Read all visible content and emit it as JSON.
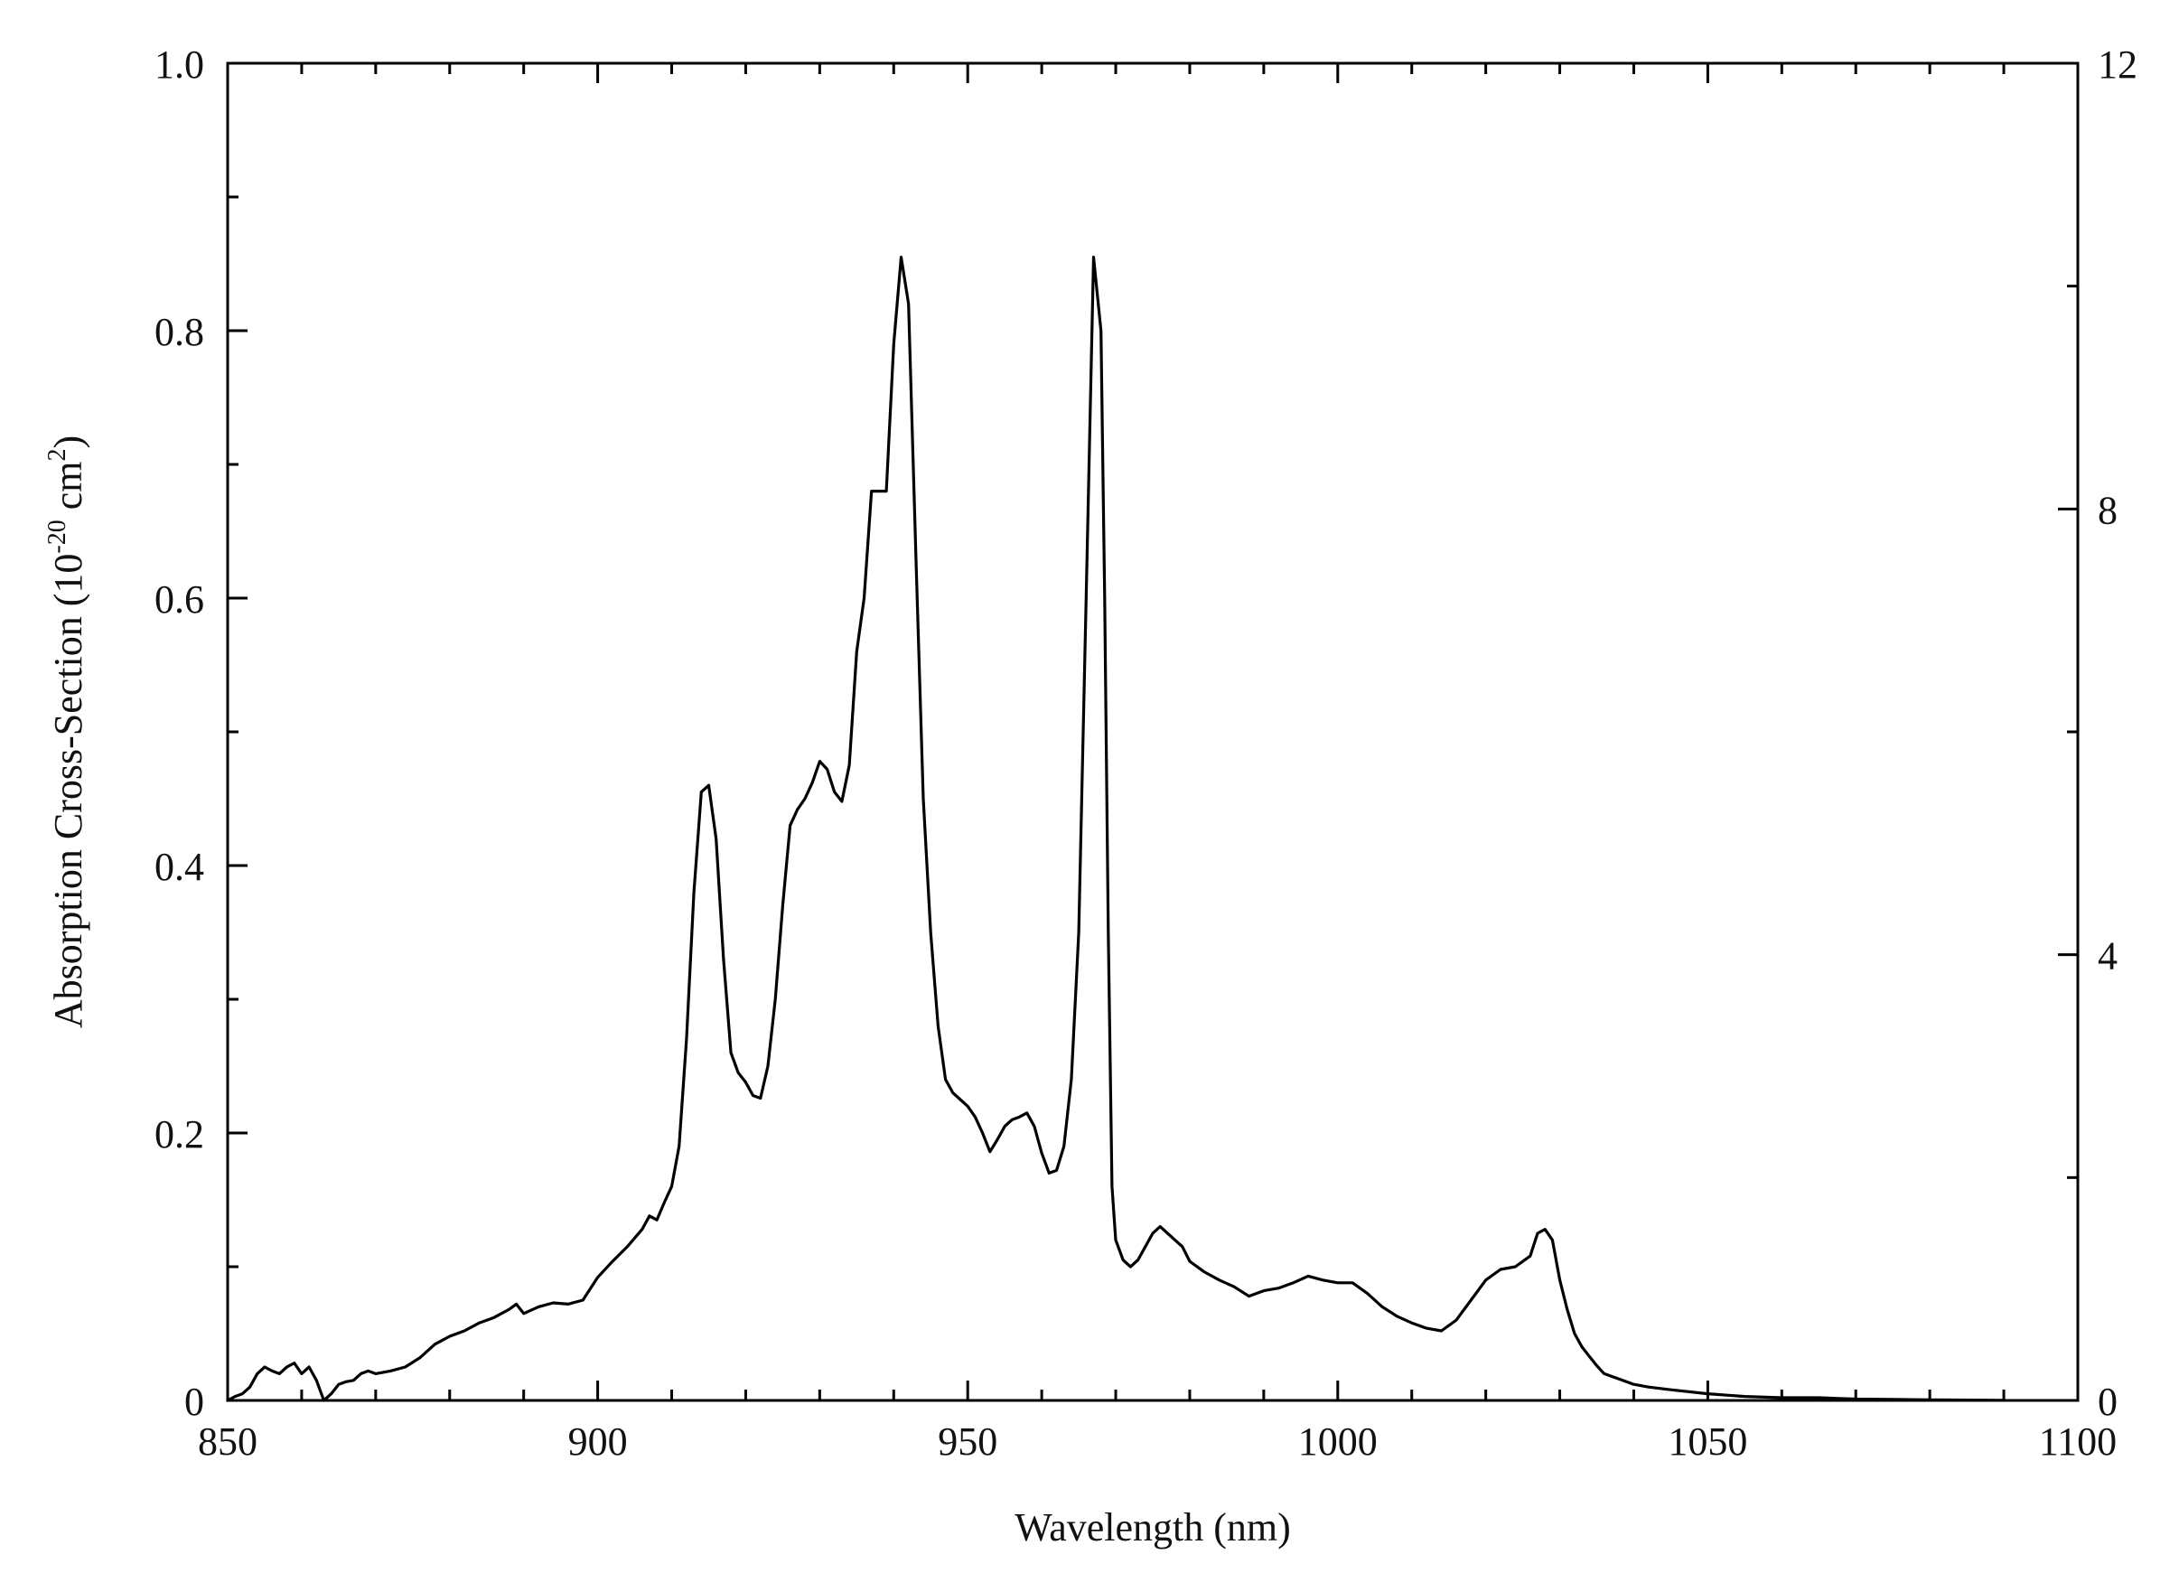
{
  "chart_data": {
    "type": "line",
    "title": "",
    "xlabel": "Wavelength (nm)",
    "ylabel": {
      "prefix": "Absorption Cross-Section (10",
      "exp1": "-20",
      "middle": " cm",
      "exp2": "2",
      "suffix": ")"
    },
    "xlim": [
      850,
      1100
    ],
    "ylim": [
      0,
      1.0
    ],
    "y2lim": [
      0,
      12
    ],
    "x_ticks": [
      "850",
      "900",
      "950",
      "1000",
      "1050",
      "1100"
    ],
    "y_ticks": [
      "0",
      "0.2",
      "0.4",
      "0.6",
      "0.8",
      "1.0"
    ],
    "y2_ticks": [
      "0",
      "4",
      "8",
      "12"
    ],
    "grid": false,
    "line_color": "#000000",
    "series": [
      {
        "x": [
          850,
          851,
          852,
          853,
          854,
          855,
          856,
          857,
          858,
          859,
          860,
          861,
          862,
          863,
          864,
          865,
          866,
          867,
          868,
          869,
          870,
          872,
          874,
          876,
          878,
          880,
          882,
          884,
          886,
          888,
          889,
          890,
          892,
          894,
          896,
          898,
          900,
          902,
          904,
          906,
          907,
          908,
          909,
          910,
          911,
          912,
          913,
          914,
          915,
          916,
          917,
          918,
          919,
          920,
          921,
          922,
          923,
          924,
          925,
          926,
          927,
          928,
          929,
          930,
          931,
          932,
          933,
          934,
          935,
          936,
          937,
          938,
          939,
          940,
          941,
          942,
          943,
          944,
          945,
          946,
          947,
          948,
          949,
          950,
          951,
          952,
          953,
          954,
          955,
          956,
          957,
          958,
          959,
          960,
          961,
          962,
          963,
          964,
          965,
          966,
          967,
          968,
          968.5,
          969,
          969.5,
          970,
          971,
          972,
          973,
          974,
          975,
          976,
          977,
          978,
          979,
          980,
          982,
          984,
          986,
          988,
          989,
          990,
          992,
          994,
          996,
          998,
          1000,
          1002,
          1004,
          1006,
          1008,
          1010,
          1012,
          1014,
          1016,
          1018,
          1020,
          1022,
          1024,
          1026,
          1027,
          1028,
          1029,
          1030,
          1031,
          1032,
          1033,
          1034,
          1035,
          1036,
          1038,
          1040,
          1042,
          1045,
          1050,
          1055,
          1060,
          1065,
          1070,
          1075,
          1080,
          1085,
          1090
        ],
        "y": [
          0.0,
          0.003,
          0.005,
          0.01,
          0.02,
          0.025,
          0.022,
          0.02,
          0.025,
          0.028,
          0.02,
          0.025,
          0.015,
          0.0,
          0.005,
          0.012,
          0.014,
          0.015,
          0.02,
          0.022,
          0.02,
          0.022,
          0.025,
          0.032,
          0.042,
          0.048,
          0.052,
          0.058,
          0.062,
          0.068,
          0.072,
          0.065,
          0.07,
          0.073,
          0.072,
          0.075,
          0.092,
          0.104,
          0.115,
          0.128,
          0.138,
          0.135,
          0.148,
          0.16,
          0.19,
          0.27,
          0.38,
          0.455,
          0.46,
          0.42,
          0.33,
          0.26,
          0.245,
          0.238,
          0.228,
          0.226,
          0.25,
          0.3,
          0.37,
          0.43,
          0.442,
          0.45,
          0.462,
          0.478,
          0.472,
          0.455,
          0.448,
          0.475,
          0.56,
          0.6,
          0.68,
          0.68,
          0.68,
          0.79,
          0.855,
          0.82,
          0.63,
          0.45,
          0.35,
          0.28,
          0.24,
          0.23,
          0.225,
          0.22,
          0.212,
          0.2,
          0.186,
          0.195,
          0.205,
          0.21,
          0.212,
          0.215,
          0.205,
          0.185,
          0.17,
          0.172,
          0.19,
          0.24,
          0.35,
          0.6,
          0.855,
          0.8,
          0.6,
          0.35,
          0.16,
          0.12,
          0.105,
          0.1,
          0.105,
          0.115,
          0.125,
          0.13,
          0.125,
          0.12,
          0.115,
          0.104,
          0.096,
          0.09,
          0.085,
          0.078,
          0.08,
          0.082,
          0.084,
          0.088,
          0.093,
          0.09,
          0.088,
          0.088,
          0.08,
          0.07,
          0.063,
          0.058,
          0.054,
          0.052,
          0.06,
          0.075,
          0.09,
          0.098,
          0.1,
          0.108,
          0.125,
          0.128,
          0.12,
          0.09,
          0.068,
          0.05,
          0.04,
          0.033,
          0.026,
          0.02,
          0.016,
          0.012,
          0.01,
          0.008,
          0.005,
          0.003,
          0.002,
          0.002,
          0.001,
          0.0008,
          0.0005,
          0.0003,
          0.0001
        ]
      }
    ]
  }
}
